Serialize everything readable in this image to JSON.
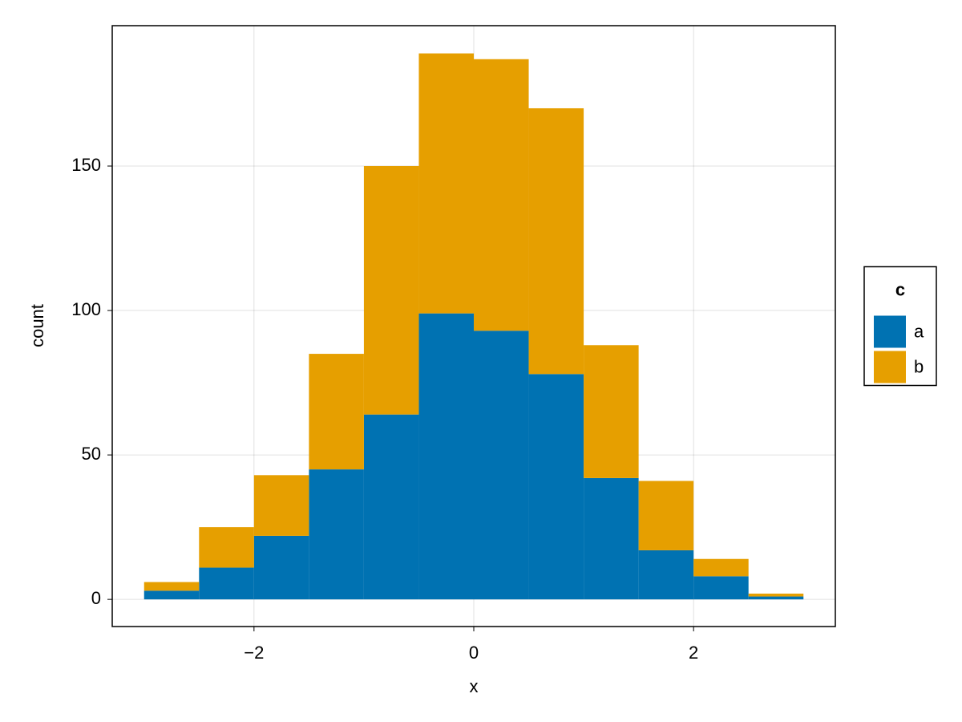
{
  "chart_data": {
    "type": "histogram",
    "xlabel": "x",
    "ylabel": "count",
    "bins": [
      -3,
      -2.5,
      -2,
      -1.5,
      -1,
      -0.5,
      0,
      0.5,
      1,
      1.5,
      2,
      2.5,
      3
    ],
    "series": [
      {
        "name": "a",
        "color": "#0072b2",
        "values": [
          3,
          11,
          22,
          45,
          64,
          99,
          93,
          78,
          42,
          17,
          8,
          1
        ]
      },
      {
        "name": "b",
        "color": "#e69f00",
        "values": [
          3,
          14,
          21,
          40,
          86,
          90,
          94,
          92,
          46,
          24,
          6,
          1
        ]
      }
    ],
    "stacked": true,
    "legend_title": "c",
    "legend": "right",
    "xlim": [
      -3.29,
      3.29
    ],
    "ylim": [
      -9.4,
      198.6
    ],
    "xticks": [
      {
        "value": -2,
        "label": "−2"
      },
      0,
      2
    ],
    "yticks": [
      0,
      50,
      100,
      150
    ],
    "grid": true
  }
}
